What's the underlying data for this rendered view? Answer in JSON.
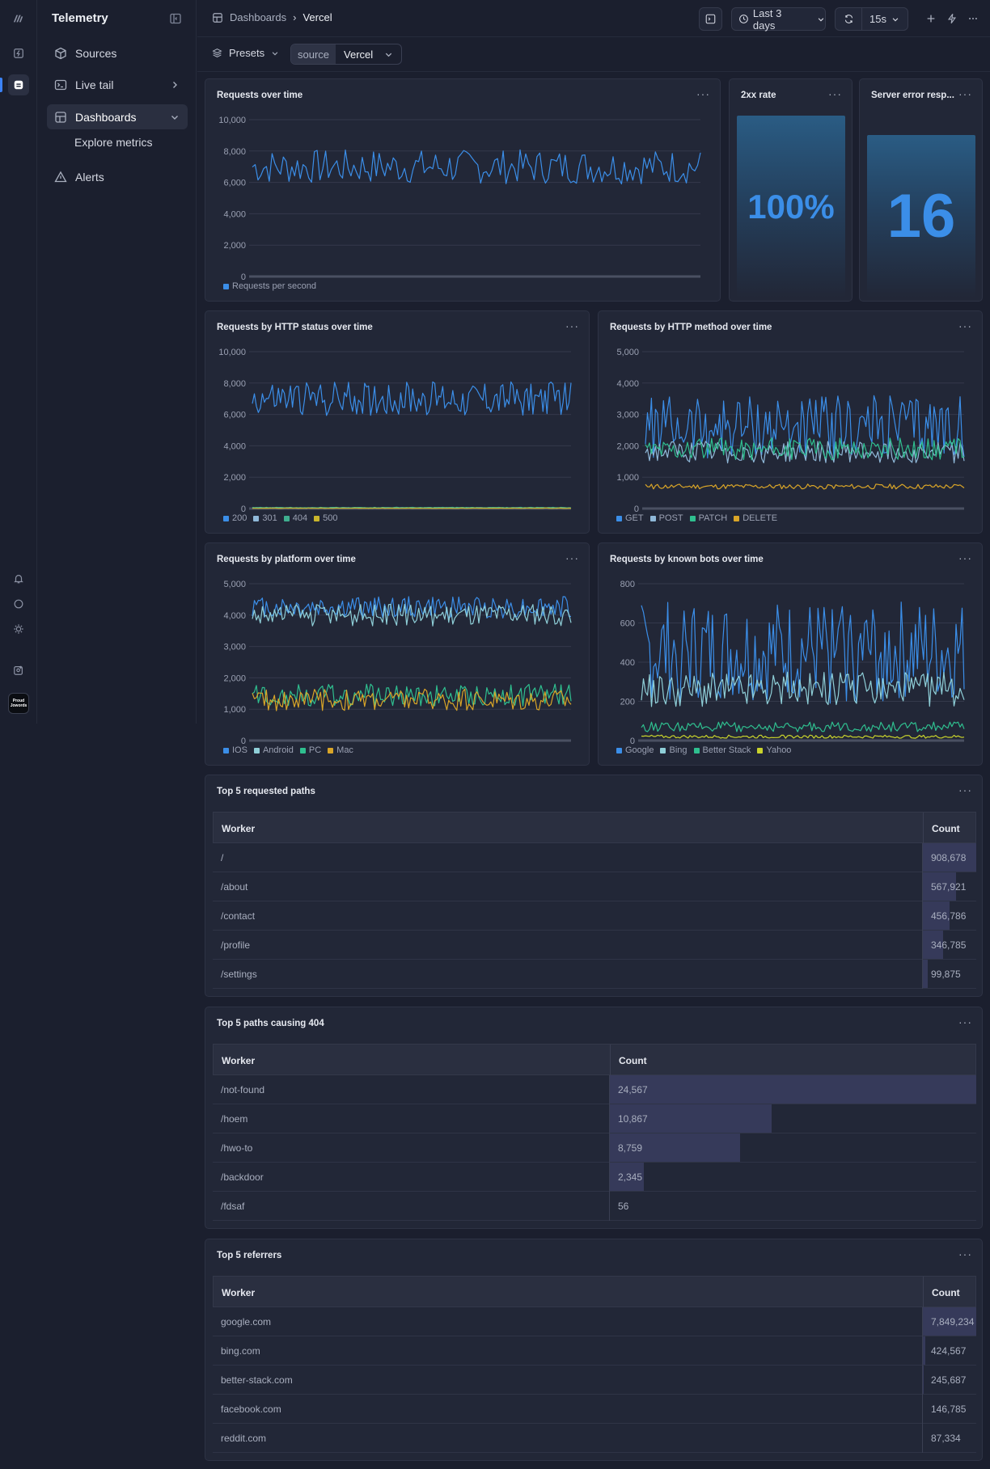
{
  "app": {
    "title": "Telemetry",
    "avatar_label": "Proud Jowords"
  },
  "sidebar": {
    "items": [
      {
        "label": "Sources",
        "icon": "cube-icon"
      },
      {
        "label": "Live tail",
        "icon": "terminal-icon"
      },
      {
        "label": "Dashboards",
        "icon": "dashboard-icon"
      },
      {
        "label": "Explore metrics"
      },
      {
        "label": "Alerts",
        "icon": "warning-icon"
      }
    ]
  },
  "breadcrumb": {
    "parent": "Dashboards",
    "current": "Vercel"
  },
  "toolbar": {
    "time_range": "Last 3 days",
    "refresh_interval": "15s"
  },
  "filters": {
    "presets_label": "Presets",
    "source_key": "source",
    "source_value": "Vercel"
  },
  "panels": {
    "requests_over_time": {
      "title": "Requests over time"
    },
    "rate_2xx": {
      "title": "2xx rate",
      "value": "100%"
    },
    "server_errors": {
      "title": "Server error resp...",
      "value": "16"
    },
    "by_status": {
      "title": "Requests by HTTP status over time"
    },
    "by_method": {
      "title": "Requests by HTTP method over time"
    },
    "by_platform": {
      "title": "Requests by platform over time"
    },
    "by_bots": {
      "title": "Requests by known bots over time"
    }
  },
  "tables": [
    {
      "title": "Top 5 requested paths",
      "col1": "Worker",
      "col2": "Count",
      "rows": [
        {
          "name": "/",
          "count": "908,678",
          "value": 908678
        },
        {
          "name": "/about",
          "count": "567,921",
          "value": 567921
        },
        {
          "name": "/contact",
          "count": "456,786",
          "value": 456786
        },
        {
          "name": "/profile",
          "count": "346,785",
          "value": 346785
        },
        {
          "name": "/settings",
          "count": "99,875",
          "value": 99875
        }
      ]
    },
    {
      "title": "Top 5 paths causing 404",
      "col1": "Worker",
      "col2": "Count",
      "rows": [
        {
          "name": "/not-found",
          "count": "24,567",
          "value": 24567
        },
        {
          "name": "/hoem",
          "count": "10,867",
          "value": 10867
        },
        {
          "name": "/hwo-to",
          "count": "8,759",
          "value": 8759
        },
        {
          "name": "/backdoor",
          "count": "2,345",
          "value": 2345
        },
        {
          "name": "/fdsaf",
          "count": "56",
          "value": 56
        }
      ]
    },
    {
      "title": "Top 5 referrers",
      "col1": "Worker",
      "col2": "Count",
      "rows": [
        {
          "name": "google.com",
          "count": "7,849,234",
          "value": 7849234
        },
        {
          "name": "bing.com",
          "count": "424,567",
          "value": 424567
        },
        {
          "name": "better-stack.com",
          "count": "245,687",
          "value": 245687
        },
        {
          "name": "facebook.com",
          "count": "146,785",
          "value": 146785
        },
        {
          "name": "reddit.com",
          "count": "87,334",
          "value": 87334
        }
      ]
    }
  ],
  "chart_data": [
    {
      "type": "line",
      "title": "Requests over time",
      "ylim": [
        0,
        10000
      ],
      "yticks": [
        "0",
        "2,000",
        "4,000",
        "6,000",
        "8,000",
        "10,000"
      ],
      "series": [
        {
          "name": "Requests per second",
          "color": "#3b8ee8",
          "mean": 7000,
          "amp": 1100
        }
      ]
    },
    {
      "type": "line",
      "title": "Requests by HTTP status over time",
      "ylim": [
        0,
        10000
      ],
      "yticks": [
        "0",
        "2,000",
        "4,000",
        "6,000",
        "8,000",
        "10,000"
      ],
      "series": [
        {
          "name": "200",
          "color": "#3b8ee8",
          "mean": 7000,
          "amp": 1100
        },
        {
          "name": "301",
          "color": "#8fb8d8",
          "mean": 40,
          "amp": 20
        },
        {
          "name": "404",
          "color": "#3fae8f",
          "mean": 60,
          "amp": 20
        },
        {
          "name": "500",
          "color": "#c9b52c",
          "mean": 20,
          "amp": 10
        }
      ]
    },
    {
      "type": "line",
      "title": "Requests by HTTP method over time",
      "ylim": [
        0,
        5000
      ],
      "yticks": [
        "0",
        "1,000",
        "2,000",
        "3,000",
        "4,000",
        "5,000"
      ],
      "series": [
        {
          "name": "GET",
          "color": "#3b8ee8",
          "mean": 2600,
          "amp": 1000
        },
        {
          "name": "POST",
          "color": "#8fb8d8",
          "mean": 1800,
          "amp": 350
        },
        {
          "name": "PATCH",
          "color": "#2fbf8f",
          "mean": 1900,
          "amp": 350
        },
        {
          "name": "DELETE",
          "color": "#d9a528",
          "mean": 700,
          "amp": 80
        }
      ]
    },
    {
      "type": "line",
      "title": "Requests by platform over time",
      "ylim": [
        0,
        5000
      ],
      "yticks": [
        "0",
        "1,000",
        "2,000",
        "3,000",
        "4,000",
        "5,000"
      ],
      "series": [
        {
          "name": "IOS",
          "color": "#3b8ee8",
          "mean": 4250,
          "amp": 350
        },
        {
          "name": "Android",
          "color": "#8fcfd8",
          "mean": 4000,
          "amp": 350
        },
        {
          "name": "PC",
          "color": "#2fbf8f",
          "mean": 1450,
          "amp": 350
        },
        {
          "name": "Mac",
          "color": "#d9a528",
          "mean": 1300,
          "amp": 350
        }
      ]
    },
    {
      "type": "line",
      "title": "Requests by known bots over time",
      "ylim": [
        0,
        800
      ],
      "yticks": [
        "0",
        "200",
        "400",
        "600",
        "800"
      ],
      "series": [
        {
          "name": "Google",
          "color": "#3b8ee8",
          "mean": 450,
          "amp": 260
        },
        {
          "name": "Bing",
          "color": "#8fcfd8",
          "mean": 260,
          "amp": 90
        },
        {
          "name": "Better Stack",
          "color": "#2fbf8f",
          "mean": 70,
          "amp": 25
        },
        {
          "name": "Yahoo",
          "color": "#c9d32c",
          "mean": 20,
          "amp": 8
        }
      ]
    }
  ]
}
